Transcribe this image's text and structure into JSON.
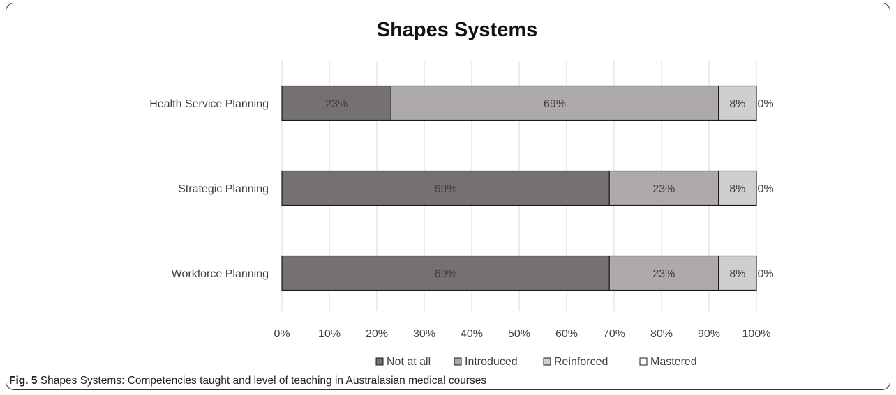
{
  "chart_data": {
    "type": "bar",
    "orientation": "horizontal",
    "stacked": "percent",
    "title": "Shapes Systems",
    "categories": [
      "Health Service Planning",
      "Strategic Planning",
      "Workforce Planning"
    ],
    "series": [
      {
        "name": "Not at all",
        "values": [
          23,
          69,
          69
        ],
        "labels": [
          "23%",
          "69%",
          "69%"
        ],
        "color": "#757170"
      },
      {
        "name": "Introduced",
        "values": [
          69,
          23,
          23
        ],
        "labels": [
          "69%",
          "23%",
          "23%"
        ],
        "color": "#aeaaaa"
      },
      {
        "name": "Reinforced",
        "values": [
          8,
          8,
          8
        ],
        "labels": [
          "8%",
          "8%",
          "8%"
        ],
        "color": "#d0cece"
      },
      {
        "name": "Mastered",
        "values": [
          0,
          0,
          0
        ],
        "labels": [
          "0%",
          "0%",
          "0%"
        ],
        "color": "#ffffff"
      }
    ],
    "xlim": [
      0,
      100
    ],
    "xticks": [
      "0%",
      "10%",
      "20%",
      "30%",
      "40%",
      "50%",
      "60%",
      "70%",
      "80%",
      "90%",
      "100%"
    ],
    "grid": "vertical",
    "legend_position": "bottom"
  },
  "caption": {
    "label": "Fig. 5",
    "text": " Shapes Systems: Competencies taught and level of teaching in Australasian medical courses"
  }
}
